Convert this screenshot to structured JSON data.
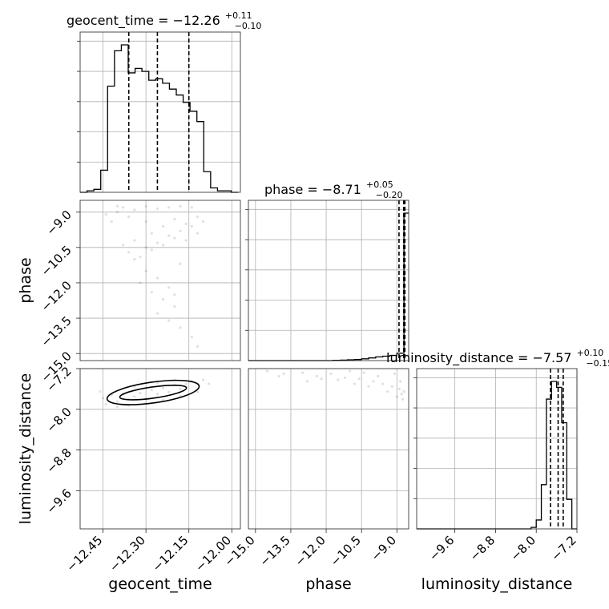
{
  "chart_data": {
    "type": "corner",
    "parameters": [
      "geocent_time",
      "phase",
      "luminosity_distance"
    ],
    "titles": [
      {
        "param": "geocent_time",
        "label": "geocent_time = −12.26",
        "upper": "+0.11",
        "lower": "−0.10"
      },
      {
        "param": "phase",
        "label": "phase = −8.71",
        "upper": "+0.05",
        "lower": "−0.20"
      },
      {
        "param": "luminosity_distance",
        "label": "luminosity_distance = −7.57",
        "upper": "+0.10",
        "lower": "−0.15"
      }
    ],
    "ranges": {
      "geocent_time": [
        -12.53,
        -11.97
      ],
      "phase": [
        -15.3,
        -8.5
      ],
      "luminosity_distance": [
        -10.35,
        -7.2
      ]
    },
    "ticks": {
      "geocent_time": [
        -12.45,
        -12.3,
        -12.15,
        -12.0
      ],
      "phase": [
        -15.0,
        -13.5,
        -12.0,
        -10.5,
        -9.0
      ],
      "luminosity_distance": [
        -9.6,
        -8.8,
        -8.0,
        -7.2
      ]
    },
    "tick_labels": {
      "geocent_time": [
        "−12.45",
        "−12.30",
        "−12.15",
        "−12.00"
      ],
      "phase": [
        "−15.0",
        "−13.5",
        "−12.0",
        "−10.5",
        "−9.0"
      ],
      "luminosity_distance": [
        "−9.6",
        "−8.8",
        "−8.0",
        "−7.2"
      ]
    },
    "quantiles": {
      "geocent_time": [
        -12.36,
        -12.26,
        -12.15
      ],
      "phase": [
        -8.91,
        -8.71,
        -8.66
      ],
      "luminosity_distance": [
        -7.72,
        -7.57,
        -7.47
      ]
    },
    "histograms": {
      "geocent_time": {
        "edges": [
          -12.53,
          -12.506,
          -12.482,
          -12.458,
          -12.434,
          -12.41,
          -12.386,
          -12.362,
          -12.338,
          -12.314,
          -12.29,
          -12.266,
          -12.242,
          -12.218,
          -12.194,
          -12.17,
          -12.146,
          -12.122,
          -12.098,
          -12.074,
          -12.05,
          -12.026,
          -12.002,
          -11.978
        ],
        "counts": [
          0,
          1,
          2,
          15,
          72,
          96,
          100,
          81,
          84,
          82,
          76,
          77,
          74,
          70,
          66,
          61,
          55,
          48,
          14,
          3,
          1,
          1,
          0
        ]
      },
      "phase": {
        "edges": [
          -15.3,
          -15.0,
          -14.7,
          -14.4,
          -14.1,
          -13.8,
          -13.5,
          -13.2,
          -12.9,
          -12.6,
          -12.3,
          -12.0,
          -11.7,
          -11.4,
          -11.1,
          -10.8,
          -10.5,
          -10.2,
          -9.9,
          -9.6,
          -9.3,
          -9.0,
          -8.7,
          -8.5
        ],
        "counts": [
          0,
          0,
          0,
          0,
          0,
          0,
          0,
          0,
          0,
          0,
          0,
          0,
          0.2,
          0.3,
          0.5,
          0.7,
          1.2,
          1.8,
          2.5,
          3.0,
          3.5,
          5.0,
          100
        ]
      },
      "luminosity_distance": {
        "edges": [
          -10.35,
          -8.2,
          -8.1,
          -8.0,
          -7.9,
          -7.8,
          -7.7,
          -7.6,
          -7.5,
          -7.4,
          -7.3,
          -7.2
        ],
        "counts": [
          0,
          0,
          1,
          6,
          30,
          88,
          100,
          96,
          72,
          20,
          0
        ]
      }
    },
    "samples": {
      "geocent_time_phase": [
        [
          -12.4,
          -8.75
        ],
        [
          -12.38,
          -8.8
        ],
        [
          -12.34,
          -8.9
        ],
        [
          -12.3,
          -8.75
        ],
        [
          -12.26,
          -8.85
        ],
        [
          -12.22,
          -8.8
        ],
        [
          -12.18,
          -8.75
        ],
        [
          -12.14,
          -8.8
        ],
        [
          -12.36,
          -9.2
        ],
        [
          -12.3,
          -9.4
        ],
        [
          -12.24,
          -9.6
        ],
        [
          -12.2,
          -9.3
        ],
        [
          -12.16,
          -9.5
        ],
        [
          -12.12,
          -9.2
        ],
        [
          -12.28,
          -9.9
        ],
        [
          -12.22,
          -10.0
        ],
        [
          -12.18,
          -9.8
        ],
        [
          -12.14,
          -9.6
        ],
        [
          -12.1,
          -9.4
        ],
        [
          -12.34,
          -10.2
        ],
        [
          -12.3,
          -10.5
        ],
        [
          -12.26,
          -10.3
        ],
        [
          -12.38,
          -10.4
        ],
        [
          -12.36,
          -10.7
        ],
        [
          -12.32,
          -10.9
        ],
        [
          -12.28,
          -10.6
        ],
        [
          -12.24,
          -10.4
        ],
        [
          -12.2,
          -10.1
        ],
        [
          -12.3,
          -11.5
        ],
        [
          -12.26,
          -11.8
        ],
        [
          -12.22,
          -12.2
        ],
        [
          -12.28,
          -12.4
        ],
        [
          -12.24,
          -12.7
        ],
        [
          -12.2,
          -13.0
        ],
        [
          -12.26,
          -13.3
        ],
        [
          -12.22,
          -13.6
        ],
        [
          -12.18,
          -13.9
        ],
        [
          -12.14,
          -14.3
        ],
        [
          -12.12,
          -14.7
        ],
        [
          -12.4,
          -9.0
        ],
        [
          -12.44,
          -9.1
        ],
        [
          -12.42,
          -9.4
        ],
        [
          -12.16,
          -10.2
        ],
        [
          -12.12,
          -9.9
        ],
        [
          -12.34,
          -11.0
        ],
        [
          -12.18,
          -11.2
        ],
        [
          -12.32,
          -12.0
        ],
        [
          -12.2,
          -12.5
        ]
      ],
      "geocent_time_luminosity_distance": [
        [
          -12.45,
          -7.78
        ],
        [
          -12.42,
          -7.72
        ],
        [
          -12.4,
          -7.85
        ],
        [
          -12.38,
          -7.7
        ],
        [
          -12.36,
          -7.8
        ],
        [
          -12.34,
          -7.75
        ],
        [
          -12.32,
          -7.68
        ],
        [
          -12.3,
          -7.8
        ],
        [
          -12.28,
          -7.62
        ],
        [
          -12.26,
          -7.7
        ],
        [
          -12.24,
          -7.58
        ],
        [
          -12.22,
          -7.66
        ],
        [
          -12.2,
          -7.52
        ],
        [
          -12.18,
          -7.6
        ],
        [
          -12.16,
          -7.5
        ],
        [
          -12.14,
          -7.45
        ],
        [
          -12.12,
          -7.5
        ],
        [
          -12.1,
          -7.42
        ],
        [
          -12.44,
          -7.9
        ],
        [
          -12.4,
          -7.95
        ],
        [
          -12.36,
          -7.92
        ],
        [
          -12.3,
          -7.88
        ],
        [
          -12.24,
          -7.82
        ],
        [
          -12.18,
          -7.74
        ],
        [
          -12.12,
          -7.66
        ],
        [
          -12.08,
          -7.5
        ],
        [
          -12.46,
          -7.65
        ],
        [
          -12.34,
          -7.55
        ],
        [
          -12.26,
          -7.48
        ],
        [
          -12.2,
          -7.42
        ]
      ],
      "phase_luminosity_distance": [
        [
          -14.5,
          -7.25
        ],
        [
          -13.8,
          -7.3
        ],
        [
          -13.0,
          -7.28
        ],
        [
          -12.4,
          -7.35
        ],
        [
          -11.8,
          -7.3
        ],
        [
          -11.2,
          -7.38
        ],
        [
          -10.6,
          -7.4
        ],
        [
          -10.0,
          -7.45
        ],
        [
          -9.6,
          -7.5
        ],
        [
          -9.2,
          -7.55
        ],
        [
          -8.9,
          -7.6
        ],
        [
          -8.8,
          -7.7
        ],
        [
          -8.7,
          -7.65
        ],
        [
          -8.75,
          -7.8
        ],
        [
          -9.0,
          -7.75
        ],
        [
          -9.4,
          -7.65
        ],
        [
          -10.2,
          -7.55
        ],
        [
          -10.8,
          -7.5
        ],
        [
          -11.5,
          -7.42
        ],
        [
          -12.2,
          -7.4
        ],
        [
          -14.0,
          -7.35
        ],
        [
          -12.8,
          -7.45
        ],
        [
          -9.8,
          -7.35
        ],
        [
          -10.4,
          -7.28
        ],
        [
          -11.0,
          -7.25
        ],
        [
          -9.1,
          -7.3
        ],
        [
          -8.85,
          -7.45
        ]
      ]
    }
  }
}
